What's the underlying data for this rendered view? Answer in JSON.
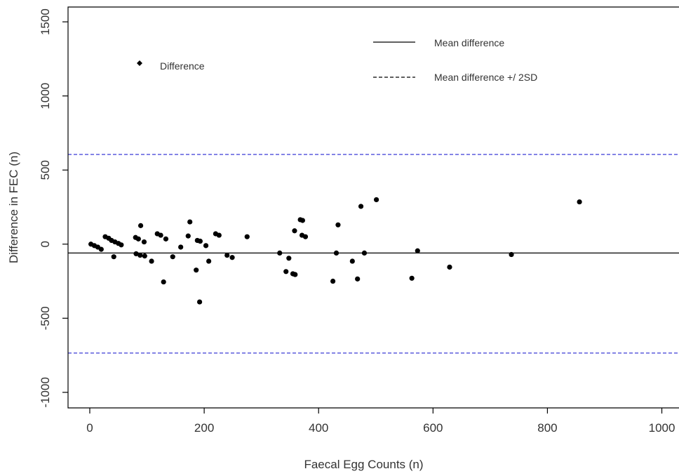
{
  "chart_data": {
    "type": "scatter",
    "xlabel": "Faecal Egg Counts (n)",
    "ylabel": "Difference in FEC (n)",
    "xlim": [
      -38,
      1030
    ],
    "ylim": [
      -1105,
      1600
    ],
    "x_ticks": [
      0,
      200,
      400,
      600,
      800,
      1000
    ],
    "y_ticks": [
      -1000,
      -500,
      0,
      500,
      1000,
      1500
    ],
    "x_tick_labels": [
      "0",
      "200",
      "400",
      "600",
      "800",
      "1000"
    ],
    "y_tick_labels": [
      "-1000",
      "-500",
      "0",
      "500",
      "1000",
      "1500"
    ],
    "mean_difference": -60,
    "upper_limit": 605,
    "lower_limit": -735,
    "colors": {
      "points": "#000000",
      "mean_line": "#000000",
      "limit_lines": "#3b3bd6"
    },
    "legends": [
      {
        "position": "top-left",
        "entries": [
          {
            "label": "Difference",
            "marker": "diamond"
          }
        ]
      },
      {
        "position": "top-right",
        "entries": [
          {
            "label": "Mean difference",
            "line": "solid"
          },
          {
            "label": "Mean difference +/ 2SD",
            "line": "dashed"
          }
        ]
      }
    ],
    "series": [
      {
        "points": [
          [
            2,
            0
          ],
          [
            8,
            -10
          ],
          [
            14,
            -20
          ],
          [
            20,
            -35
          ],
          [
            27,
            50
          ],
          [
            33,
            40
          ],
          [
            38,
            25
          ],
          [
            44,
            15
          ],
          [
            50,
            5
          ],
          [
            55,
            -5
          ],
          [
            42,
            -85
          ],
          [
            80,
            45
          ],
          [
            85,
            35
          ],
          [
            89,
            125
          ],
          [
            95,
            15
          ],
          [
            81,
            -65
          ],
          [
            88,
            -75
          ],
          [
            96,
            -80
          ],
          [
            108,
            -115
          ],
          [
            118,
            70
          ],
          [
            124,
            60
          ],
          [
            133,
            35
          ],
          [
            129,
            -255
          ],
          [
            145,
            -85
          ],
          [
            159,
            -20
          ],
          [
            172,
            55
          ],
          [
            175,
            150
          ],
          [
            188,
            25
          ],
          [
            193,
            20
          ],
          [
            186,
            -175
          ],
          [
            192,
            -390
          ],
          [
            203,
            -10
          ],
          [
            208,
            -115
          ],
          [
            220,
            70
          ],
          [
            226,
            60
          ],
          [
            240,
            -75
          ],
          [
            249,
            -90
          ],
          [
            275,
            50
          ],
          [
            332,
            -60
          ],
          [
            343,
            -185
          ],
          [
            348,
            -95
          ],
          [
            355,
            -200
          ],
          [
            359,
            -205
          ],
          [
            358,
            90
          ],
          [
            368,
            165
          ],
          [
            372,
            160
          ],
          [
            371,
            60
          ],
          [
            377,
            50
          ],
          [
            425,
            -250
          ],
          [
            431,
            -60
          ],
          [
            434,
            130
          ],
          [
            459,
            -115
          ],
          [
            468,
            -235
          ],
          [
            474,
            255
          ],
          [
            480,
            -60
          ],
          [
            501,
            300
          ],
          [
            563,
            -230
          ],
          [
            573,
            -45
          ],
          [
            629,
            -155
          ],
          [
            737,
            -70
          ],
          [
            856,
            285
          ]
        ]
      }
    ]
  }
}
